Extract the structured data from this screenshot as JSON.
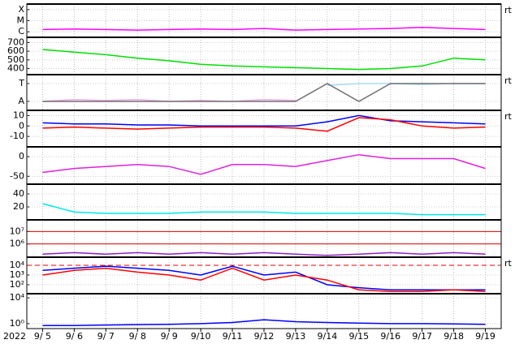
{
  "chart_data": {
    "type": "line",
    "year": "2022",
    "categories": [
      "9/ 5",
      "9/ 6",
      "9/ 7",
      "9/ 8",
      "9/ 9",
      "9/10",
      "9/11",
      "9/12",
      "9/13",
      "9/14",
      "9/15",
      "9/16",
      "9/17",
      "9/18",
      "9/19"
    ],
    "grid": true,
    "panels": [
      {
        "ylim": [
          0.5,
          3.5
        ],
        "yticks": [
          {
            "value": 3,
            "label": "X"
          },
          {
            "value": 2,
            "label": "M"
          },
          {
            "value": 1,
            "label": "C"
          }
        ],
        "right_label": "rt",
        "series": [
          {
            "color": "#ff00ff",
            "values": [
              1.2,
              1.25,
              1.2,
              1.15,
              1.2,
              1.25,
              1.2,
              1.3,
              1.15,
              1.2,
              1.25,
              1.3,
              1.4,
              1.3,
              1.2
            ]
          }
        ]
      },
      {
        "ylim": [
          330,
          760
        ],
        "yticks": [
          400,
          500,
          600,
          700
        ],
        "series": [
          {
            "color": "#00e000",
            "values": [
              620,
              590,
              560,
              520,
              490,
              450,
              430,
              420,
              410,
              400,
              390,
              400,
              430,
              520,
              500
            ]
          }
        ]
      },
      {
        "ylim": [
          0.5,
          2.5
        ],
        "yticks": [
          {
            "value": 2,
            "label": "T"
          },
          {
            "value": 1,
            "label": "A"
          }
        ],
        "right_label": "rt",
        "series": [
          {
            "color": "#f4a6e8",
            "values": [
              1.0,
              1.1,
              1.05,
              1.1,
              1.0,
              1.05,
              1.0,
              1.1,
              1.05,
              null,
              null,
              null,
              null,
              null,
              null
            ]
          },
          {
            "color": "#a8dcf8",
            "values": [
              null,
              null,
              null,
              null,
              null,
              null,
              null,
              null,
              null,
              1.9,
              2.0,
              2.0,
              1.95,
              2.0,
              2.0
            ]
          },
          {
            "color": "#707070",
            "values": [
              1,
              1,
              1,
              1,
              1,
              1,
              1,
              1,
              1,
              2,
              1,
              2,
              2,
              2,
              2
            ]
          }
        ]
      },
      {
        "ylim": [
          -20,
          15
        ],
        "yticks": [
          -10,
          0,
          10
        ],
        "right_label": "rt",
        "series": [
          {
            "color": "#0000ff",
            "values": [
              3,
              2,
              2,
              1,
              1,
              0,
              0,
              0,
              0,
              4,
              10,
              5,
              4,
              3,
              2
            ]
          },
          {
            "color": "#ff0000",
            "values": [
              -2,
              -1,
              -2,
              -3,
              -2,
              -1,
              -1,
              -1,
              -2,
              -5,
              8,
              6,
              0,
              -2,
              -1
            ]
          }
        ]
      },
      {
        "ylim": [
          -70,
          25
        ],
        "yticks": [
          -50,
          0
        ],
        "series": [
          {
            "color": "#e020e0",
            "values": [
              -40,
              -30,
              -25,
              -20,
              -25,
              -45,
              -20,
              -20,
              -25,
              -10,
              5,
              -5,
              -5,
              -5,
              -30
            ]
          }
        ]
      },
      {
        "ylim": [
          0,
          55
        ],
        "yticks": [
          20,
          40
        ],
        "series": [
          {
            "color": "#00e8e8",
            "values": [
              25,
              12,
              10,
              10,
              10,
              12,
              12,
              12,
              10,
              10,
              10,
              10,
              8,
              8,
              8
            ]
          }
        ]
      },
      {
        "ylim": [
          86000,
          86000000
        ],
        "log": true,
        "yticks": [
          {
            "value": 1000000,
            "label": "10⁶"
          },
          {
            "value": 10000000,
            "label": "10⁷"
          }
        ],
        "thresholds": [
          1000000,
          10000000
        ],
        "series": [
          {
            "color": "#9020c0",
            "values": [
              150000,
              200000,
              150000,
              200000,
              150000,
              200000,
              150000,
              200000,
              150000,
              120000,
              150000,
              200000,
              150000,
              200000,
              150000
            ]
          }
        ]
      },
      {
        "ylim": [
          12,
          68000
        ],
        "log": true,
        "yticks": [
          {
            "value": 100,
            "label": "10²"
          },
          {
            "value": 1000,
            "label": "10³"
          },
          {
            "value": 10000,
            "label": "10⁴"
          }
        ],
        "right_label": "rt",
        "dashed_threshold": 10000,
        "series": [
          {
            "color": "#0000ff",
            "values": [
              3000,
              5000,
              8000,
              5000,
              3000,
              1000,
              8000,
              1000,
              2000,
              100,
              50,
              30,
              30,
              30,
              30
            ]
          },
          {
            "color": "#ff0000",
            "values": [
              1000,
              3000,
              5000,
              2000,
              1000,
              300,
              5000,
              300,
              1000,
              300,
              30,
              20,
              20,
              30,
              20
            ]
          }
        ]
      },
      {
        "ylim": [
          0.17,
          44000
        ],
        "log": true,
        "yticks": [
          {
            "value": 1,
            "label": "10⁰"
          },
          {
            "value": 10000,
            "label": "10⁴"
          }
        ],
        "series": [
          {
            "color": "#0000ff",
            "values": [
              0.5,
              0.5,
              0.6,
              0.7,
              0.8,
              1,
              1.5,
              4,
              2,
              1.5,
              1.2,
              1,
              1,
              0.9,
              0.8
            ]
          }
        ]
      }
    ]
  }
}
